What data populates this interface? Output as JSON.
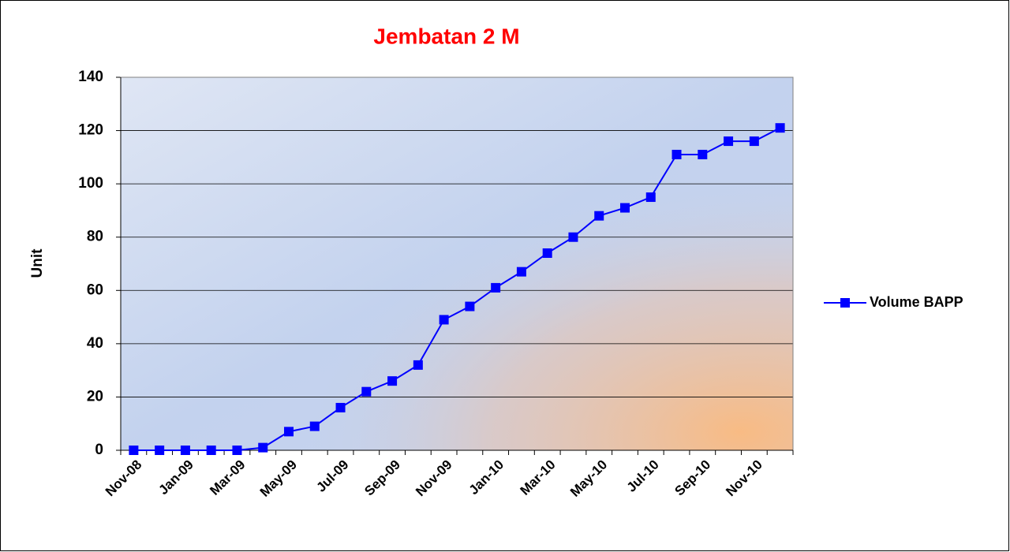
{
  "chart_data": {
    "type": "line",
    "title": "Jembatan 2 M",
    "y_label": "Unit",
    "categories": [
      "Nov-08",
      null,
      "Jan-09",
      null,
      "Mar-09",
      null,
      "May-09",
      null,
      "Jul-09",
      null,
      "Sep-09",
      null,
      "Nov-09",
      null,
      "Jan-10",
      null,
      "Mar-10",
      null,
      "May-10",
      null,
      "Jul-10",
      null,
      "Sep-10",
      null,
      "Nov-10",
      null
    ],
    "series": [
      {
        "name": "Volume BAPP",
        "color": "#0000ff",
        "values": [
          0,
          0,
          0,
          0,
          0,
          1,
          7,
          9,
          16,
          22,
          26,
          32,
          49,
          54,
          61,
          67,
          74,
          80,
          88,
          91,
          95,
          111,
          111,
          116,
          116,
          121
        ]
      }
    ],
    "ylim": [
      0,
      140
    ],
    "yticks": [
      0,
      20,
      40,
      60,
      80,
      100,
      120,
      140
    ],
    "grid": true,
    "legend": "right"
  }
}
